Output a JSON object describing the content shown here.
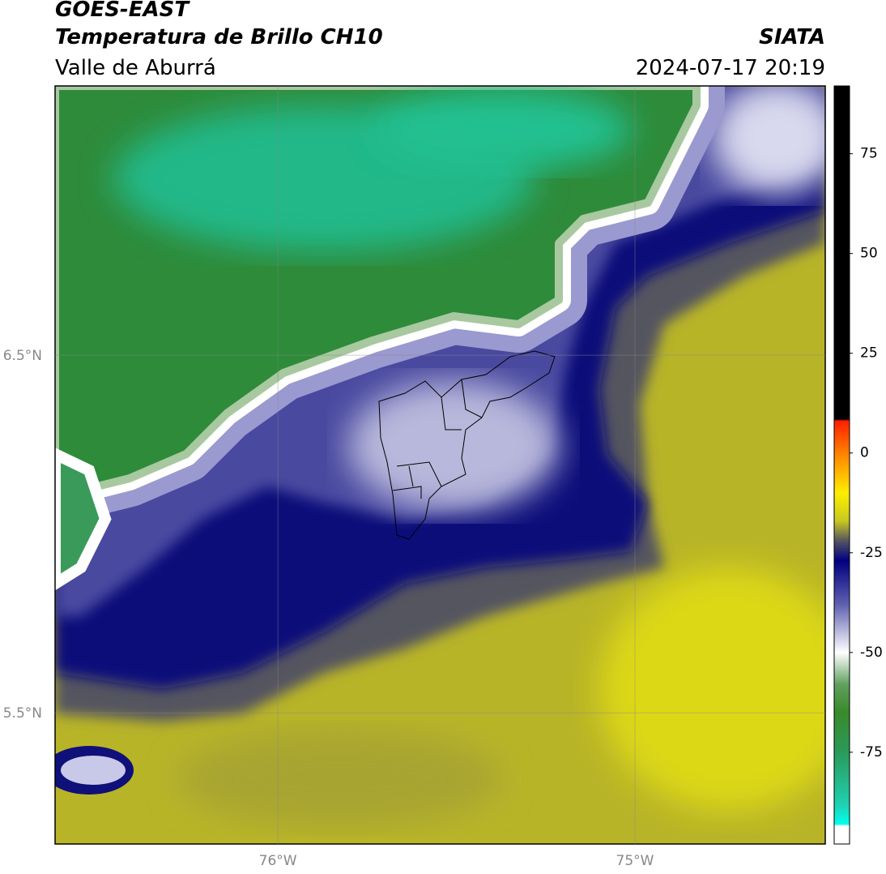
{
  "header": {
    "title": "GOES-EAST",
    "subtitle": "Temperatura de Brillo CH10",
    "region": "Valle de Aburrá",
    "source": "SIATA",
    "datetime": "2024-07-17 20:19"
  },
  "map": {
    "xlim": [
      -76.624,
      -74.467
    ],
    "ylim": [
      5.133,
      7.253
    ],
    "xticks": [
      {
        "value": -76,
        "label": "76°W"
      },
      {
        "value": -75,
        "label": "75°W"
      }
    ],
    "yticks": [
      {
        "value": 6.5,
        "label": "6.5°N"
      },
      {
        "value": 5.5,
        "label": "5.5°N"
      }
    ],
    "grid": true
  },
  "colorbar": {
    "lim": [
      -98,
      92
    ],
    "ticks": [
      75,
      50,
      25,
      0,
      -25,
      -50,
      -75
    ],
    "stops": [
      [
        92,
        "#000000"
      ],
      [
        8.5,
        "#000000"
      ],
      [
        8,
        "#ff2000"
      ],
      [
        0,
        "#ff8000"
      ],
      [
        -10,
        "#ffee00"
      ],
      [
        -17,
        "#c8c820"
      ],
      [
        -22,
        "#555560"
      ],
      [
        -27,
        "#000080"
      ],
      [
        -38,
        "#6060b0"
      ],
      [
        -50,
        "#ffffff"
      ],
      [
        -58,
        "#60a060"
      ],
      [
        -65,
        "#3a8a2a"
      ],
      [
        -75,
        "#2a9a5a"
      ],
      [
        -88,
        "#20d0b0"
      ],
      [
        -93,
        "#00ffee"
      ],
      [
        -93.5,
        "#ffffff"
      ],
      [
        -98,
        "#ffffff"
      ]
    ]
  }
}
